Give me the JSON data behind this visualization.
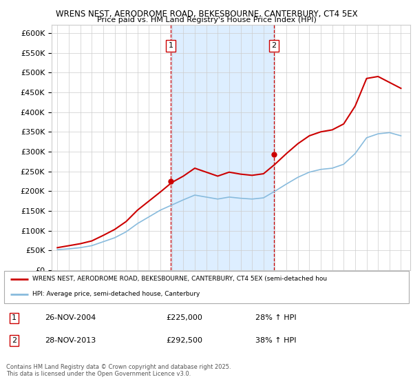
{
  "title_line1": "WRENS NEST, AERODROME ROAD, BEKESBOURNE, CANTERBURY, CT4 5EX",
  "title_line2": "Price paid vs. HM Land Registry's House Price Index (HPI)",
  "ylim": [
    0,
    620000
  ],
  "yticks": [
    0,
    50000,
    100000,
    150000,
    200000,
    250000,
    300000,
    350000,
    400000,
    450000,
    500000,
    550000,
    600000
  ],
  "ytick_labels": [
    "£0",
    "£50K",
    "£100K",
    "£150K",
    "£200K",
    "£250K",
    "£300K",
    "£350K",
    "£400K",
    "£450K",
    "£500K",
    "£550K",
    "£600K"
  ],
  "xlim_start": 1994.5,
  "xlim_end": 2025.8,
  "marker1_x": 2004.9,
  "marker1_y": 225000,
  "marker1_label": "1",
  "marker1_date": "26-NOV-2004",
  "marker1_price": "£225,000",
  "marker1_hpi": "28% ↑ HPI",
  "marker2_x": 2013.9,
  "marker2_y": 292500,
  "marker2_label": "2",
  "marker2_date": "28-NOV-2013",
  "marker2_price": "£292,500",
  "marker2_hpi": "38% ↑ HPI",
  "red_line_color": "#cc0000",
  "blue_line_color": "#88bbdd",
  "shade_color": "#ddeeff",
  "grid_color": "#cccccc",
  "background_color": "#ffffff",
  "legend_line1": "WRENS NEST, AERODROME ROAD, BEKESBOURNE, CANTERBURY, CT4 5EX (semi-detached hou",
  "legend_line2": "HPI: Average price, semi-detached house, Canterbury",
  "copyright": "Contains HM Land Registry data © Crown copyright and database right 2025.\nThis data is licensed under the Open Government Licence v3.0.",
  "hpi_years": [
    1995,
    1996,
    1997,
    1998,
    1999,
    2000,
    2001,
    2002,
    2003,
    2004,
    2005,
    2006,
    2007,
    2008,
    2009,
    2010,
    2011,
    2012,
    2013,
    2014,
    2015,
    2016,
    2017,
    2018,
    2019,
    2020,
    2021,
    2022,
    2023,
    2024,
    2025
  ],
  "hpi_values": [
    52000,
    54000,
    57000,
    62000,
    72000,
    82000,
    97000,
    118000,
    135000,
    152000,
    165000,
    178000,
    190000,
    185000,
    180000,
    185000,
    182000,
    180000,
    183000,
    200000,
    218000,
    235000,
    248000,
    255000,
    258000,
    268000,
    295000,
    335000,
    345000,
    348000,
    340000
  ],
  "price_years": [
    1995,
    1996,
    1997,
    1998,
    1999,
    2000,
    2001,
    2002,
    2003,
    2004,
    2005,
    2006,
    2007,
    2008,
    2009,
    2010,
    2011,
    2012,
    2013,
    2014,
    2015,
    2016,
    2017,
    2018,
    2019,
    2020,
    2021,
    2022,
    2023,
    2024,
    2025
  ],
  "price_values": [
    57000,
    62000,
    67000,
    74000,
    88000,
    103000,
    123000,
    152000,
    175000,
    198000,
    222000,
    238000,
    258000,
    248000,
    238000,
    248000,
    243000,
    240000,
    244000,
    268000,
    295000,
    320000,
    340000,
    350000,
    355000,
    370000,
    415000,
    485000,
    490000,
    475000,
    460000
  ]
}
